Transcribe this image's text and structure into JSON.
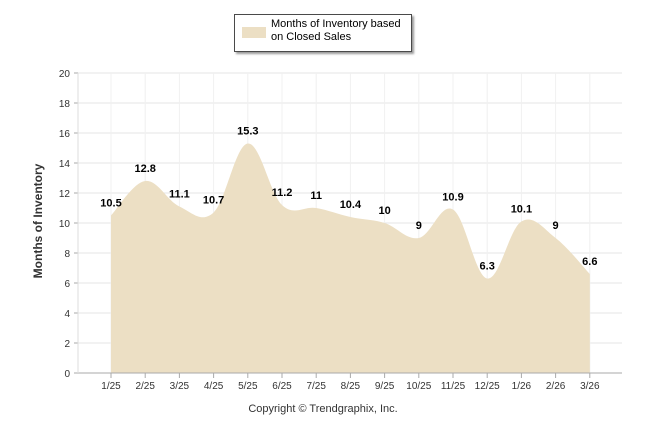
{
  "legend": {
    "label": "Months of Inventory based on Closed Sales"
  },
  "copyright": "Copyright © Trendgraphix, Inc.",
  "colors": {
    "area_fill": "#ecdfc4",
    "grid": "#e6e6e6",
    "axis": "#aaaaaa"
  },
  "chart_data": {
    "type": "area",
    "title": "",
    "xlabel": "",
    "ylabel": "Months of Inventory",
    "categories": [
      "1/25",
      "2/25",
      "3/25",
      "4/25",
      "5/25",
      "6/25",
      "7/25",
      "8/25",
      "9/25",
      "10/25",
      "11/25",
      "12/25",
      "1/26",
      "2/26",
      "3/26"
    ],
    "series": [
      {
        "name": "Months of Inventory based on Closed Sales",
        "values": [
          10.5,
          12.8,
          11.1,
          10.7,
          15.3,
          11.2,
          11,
          10.4,
          10,
          9,
          10.9,
          6.3,
          10.1,
          9,
          6.6
        ]
      }
    ],
    "ylim": [
      0,
      20
    ],
    "yticks": [
      0,
      2,
      4,
      6,
      8,
      10,
      12,
      14,
      16,
      18,
      20
    ],
    "grid": true
  }
}
